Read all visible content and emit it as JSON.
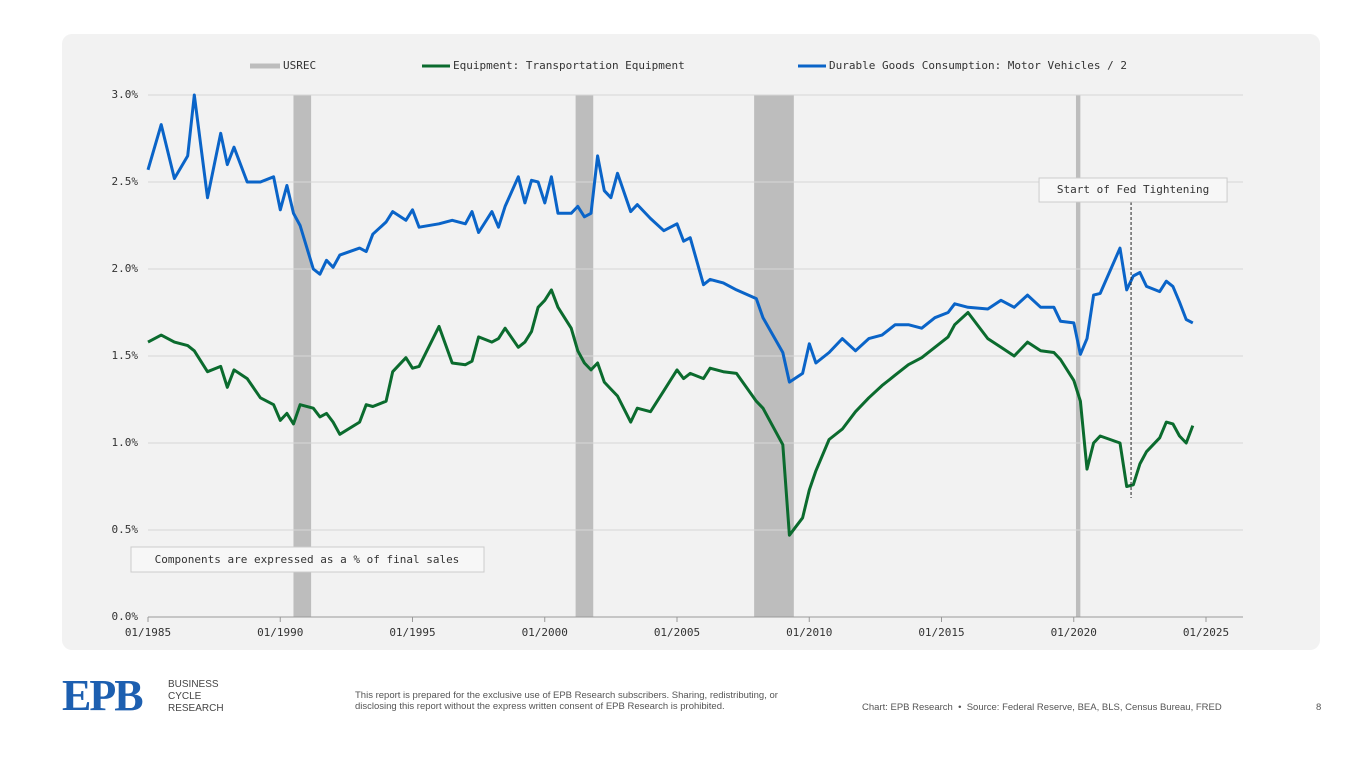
{
  "chart_data": {
    "type": "line",
    "x": [
      "01/1985",
      "07/1985",
      "01/1986",
      "07/1986",
      "10/1986",
      "04/1987",
      "10/1987",
      "01/1988",
      "04/1988",
      "10/1988",
      "04/1989",
      "10/1989",
      "01/1990",
      "04/1990",
      "07/1990",
      "10/1990",
      "04/1991",
      "07/1991",
      "10/1991",
      "01/1992",
      "04/1992",
      "01/1993",
      "04/1993",
      "07/1993",
      "01/1994",
      "04/1994",
      "10/1994",
      "01/1995",
      "04/1995",
      "01/1996",
      "07/1996",
      "01/1997",
      "04/1997",
      "07/1997",
      "01/1998",
      "04/1998",
      "07/1998",
      "01/1999",
      "04/1999",
      "07/1999",
      "10/1999",
      "01/2000",
      "04/2000",
      "07/2000",
      "01/2001",
      "04/2001",
      "07/2001",
      "10/2001",
      "01/2002",
      "04/2002",
      "07/2002",
      "10/2002",
      "04/2003",
      "07/2003",
      "01/2004",
      "07/2004",
      "01/2005",
      "04/2005",
      "07/2005",
      "01/2006",
      "04/2006",
      "10/2006",
      "04/2007",
      "01/2008",
      "04/2008",
      "01/2009",
      "04/2009",
      "10/2009",
      "01/2010",
      "04/2010",
      "10/2010",
      "04/2011",
      "10/2011",
      "04/2012",
      "10/2012",
      "04/2013",
      "10/2013",
      "04/2014",
      "10/2014",
      "04/2015",
      "07/2015",
      "01/2016",
      "10/2016",
      "04/2017",
      "10/2017",
      "04/2018",
      "10/2018",
      "04/2019",
      "07/2019",
      "01/2020",
      "04/2020",
      "07/2020",
      "10/2020",
      "01/2021",
      "10/2021",
      "01/2022",
      "04/2022",
      "07/2022",
      "10/2022",
      "04/2023",
      "07/2023",
      "10/2023",
      "01/2024",
      "04/2024",
      "07/2024"
    ],
    "series": [
      {
        "name": "Equipment: Transportation Equipment",
        "color": "#0b6b2e",
        "values": [
          1.58,
          1.62,
          1.58,
          1.56,
          1.53,
          1.41,
          1.44,
          1.32,
          1.42,
          1.37,
          1.26,
          1.22,
          1.13,
          1.17,
          1.11,
          1.22,
          1.2,
          1.15,
          1.17,
          1.12,
          1.05,
          1.12,
          1.22,
          1.21,
          1.24,
          1.41,
          1.49,
          1.43,
          1.44,
          1.67,
          1.46,
          1.45,
          1.47,
          1.61,
          1.58,
          1.6,
          1.66,
          1.55,
          1.58,
          1.64,
          1.78,
          1.82,
          1.88,
          1.78,
          1.66,
          1.53,
          1.46,
          1.42,
          1.46,
          1.35,
          1.31,
          1.27,
          1.12,
          1.2,
          1.18,
          1.3,
          1.42,
          1.37,
          1.4,
          1.37,
          1.43,
          1.41,
          1.4,
          1.24,
          1.2,
          0.99,
          0.47,
          0.57,
          0.73,
          0.84,
          1.02,
          1.08,
          1.18,
          1.26,
          1.33,
          1.39,
          1.45,
          1.49,
          1.55,
          1.61,
          1.68,
          1.75,
          1.6,
          1.55,
          1.5,
          1.58,
          1.53,
          1.52,
          1.48,
          1.36,
          1.24,
          0.85,
          1.0,
          1.04,
          1.0,
          0.75,
          0.76,
          0.88,
          0.95,
          1.03,
          1.12,
          1.11,
          1.04,
          1.0,
          1.1
        ]
      },
      {
        "name": "Durable Goods Consumption: Motor Vehicles / 2",
        "color": "#0a64c8",
        "values": [
          2.57,
          2.83,
          2.52,
          2.65,
          3.0,
          2.41,
          2.78,
          2.6,
          2.7,
          2.5,
          2.5,
          2.53,
          2.34,
          2.48,
          2.32,
          2.25,
          2.0,
          1.97,
          2.05,
          2.01,
          2.08,
          2.12,
          2.1,
          2.2,
          2.27,
          2.33,
          2.28,
          2.34,
          2.24,
          2.26,
          2.28,
          2.26,
          2.33,
          2.21,
          2.33,
          2.24,
          2.36,
          2.53,
          2.38,
          2.51,
          2.5,
          2.38,
          2.53,
          2.32,
          2.32,
          2.36,
          2.3,
          2.32,
          2.65,
          2.45,
          2.41,
          2.55,
          2.33,
          2.37,
          2.29,
          2.22,
          2.26,
          2.16,
          2.18,
          1.91,
          1.94,
          1.92,
          1.88,
          1.83,
          1.72,
          1.52,
          1.35,
          1.4,
          1.57,
          1.46,
          1.52,
          1.6,
          1.53,
          1.6,
          1.62,
          1.68,
          1.68,
          1.66,
          1.72,
          1.75,
          1.8,
          1.78,
          1.77,
          1.82,
          1.78,
          1.85,
          1.78,
          1.78,
          1.7,
          1.69,
          1.51,
          1.6,
          1.85,
          1.86,
          2.12,
          1.88,
          1.96,
          1.98,
          1.9,
          1.87,
          1.93,
          1.9,
          1.81,
          1.71,
          1.69
        ]
      }
    ],
    "shading": {
      "name": "USREC",
      "color": "#bdbdbd",
      "spans": [
        [
          "07/1990",
          "03/1991"
        ],
        [
          "03/2001",
          "11/2001"
        ],
        [
          "12/2007",
          "06/2009"
        ],
        [
          "02/2020",
          "04/2020"
        ]
      ]
    },
    "xlim": [
      "01/1985",
      "01/2025"
    ],
    "xticks": [
      "01/1985",
      "01/1990",
      "01/1995",
      "01/2000",
      "01/2005",
      "01/2010",
      "01/2015",
      "01/2020",
      "01/2025"
    ],
    "ylim": [
      0,
      3
    ],
    "yticks": [
      {
        "value": 0,
        "label": "0.0%"
      },
      {
        "value": 0.5,
        "label": "0.5%"
      },
      {
        "value": 1,
        "label": "1.0%"
      },
      {
        "value": 1.5,
        "label": "1.5%"
      },
      {
        "value": 2,
        "label": "2.0%"
      },
      {
        "value": 2.5,
        "label": "2.5%"
      },
      {
        "value": 3,
        "label": "3.0%"
      }
    ],
    "grid": true,
    "annotations": [
      {
        "text": "Start of Fed Tightening",
        "x": "03/2022"
      }
    ],
    "note": "Components are expressed as a % of final sales"
  },
  "footer": {
    "logo": "EPB",
    "brand": [
      "BUSINESS",
      "CYCLE",
      "RESEARCH"
    ],
    "disclaimer": [
      "This report is prepared for the exclusive use of EPB Research subscribers. Sharing, redistributing, or",
      "disclosing this report without the express written consent of EPB Research is prohibited."
    ],
    "source": "Chart: EPB Research  •  Source: Federal Reserve, BEA, BLS, Census Bureau, FRED",
    "page": "8"
  }
}
